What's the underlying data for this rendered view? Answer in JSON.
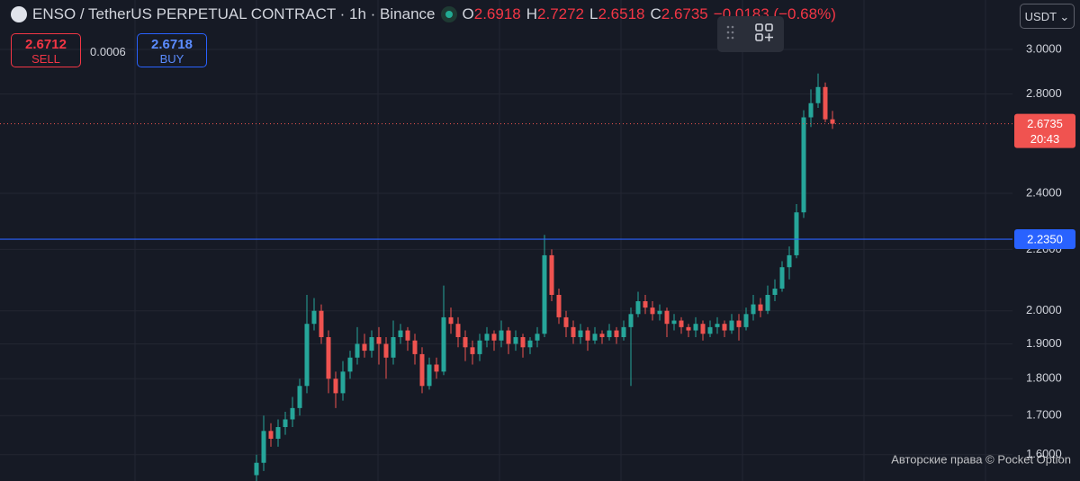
{
  "header": {
    "symbol": "ENSO / TetherUS PERPETUAL CONTRACT · 1h · Binance",
    "ohlc": [
      {
        "label": "O",
        "value": "2.6918"
      },
      {
        "label": "H",
        "value": "2.7272"
      },
      {
        "label": "L",
        "value": "2.6518"
      },
      {
        "label": "C",
        "value": "2.6735"
      }
    ],
    "change": "−0.0183 (−0.68%)"
  },
  "trade": {
    "sell": {
      "price": "2.6712",
      "label": "SELL"
    },
    "spread": "0.0006",
    "buy": {
      "price": "2.6718",
      "label": "BUY"
    }
  },
  "currency": "USDT",
  "watermark": "Авторские права © Pocket Option",
  "chart_data": {
    "type": "candlestick",
    "log_scale": true,
    "grid": true,
    "up_color": "#26a69a",
    "down_color": "#ef5350",
    "open": [
      1.55,
      1.58,
      1.66,
      1.64,
      1.67,
      1.69,
      1.72,
      1.78,
      1.96,
      2.0,
      1.92,
      1.8,
      1.76,
      1.82,
      1.86,
      1.9,
      1.88,
      1.92,
      1.9,
      1.86,
      1.92,
      1.94,
      1.91,
      1.87,
      1.78,
      1.84,
      1.82,
      1.98,
      1.96,
      1.92,
      1.89,
      1.87,
      1.91,
      1.93,
      1.91,
      1.94,
      1.9,
      1.92,
      1.89,
      1.91,
      1.93,
      2.18,
      2.05,
      1.98,
      1.95,
      1.92,
      1.94,
      1.91,
      1.93,
      1.92,
      1.94,
      1.92,
      1.95,
      1.99,
      2.03,
      2.01,
      1.99,
      2.0,
      1.96,
      1.97,
      1.95,
      1.94,
      1.96,
      1.93,
      1.95,
      1.96,
      1.94,
      1.97,
      1.95,
      1.99,
      2.02,
      2.0,
      2.05,
      2.07,
      2.14,
      2.18,
      2.33,
      2.7,
      2.76,
      2.83,
      2.6918
    ],
    "high": [
      1.6,
      1.7,
      1.68,
      1.69,
      1.71,
      1.75,
      1.8,
      2.05,
      2.04,
      2.02,
      1.94,
      1.82,
      1.85,
      1.88,
      1.95,
      1.93,
      1.94,
      1.95,
      1.92,
      1.97,
      1.96,
      1.95,
      1.93,
      1.89,
      1.86,
      1.86,
      2.08,
      2.01,
      1.98,
      1.94,
      1.91,
      1.93,
      1.95,
      1.94,
      1.97,
      1.95,
      1.94,
      1.93,
      1.92,
      1.95,
      2.25,
      2.2,
      2.07,
      2.0,
      1.97,
      1.96,
      1.95,
      1.95,
      1.94,
      1.96,
      1.95,
      1.97,
      2.01,
      2.06,
      2.05,
      2.03,
      2.02,
      2.01,
      1.99,
      1.98,
      1.96,
      1.98,
      1.97,
      1.97,
      1.98,
      1.97,
      1.99,
      1.99,
      2.01,
      2.05,
      2.04,
      2.08,
      2.1,
      2.16,
      2.21,
      2.36,
      2.73,
      2.82,
      2.89,
      2.85,
      2.7272
    ],
    "low": [
      1.53,
      1.56,
      1.62,
      1.62,
      1.65,
      1.67,
      1.7,
      1.76,
      1.94,
      1.9,
      1.76,
      1.72,
      1.74,
      1.8,
      1.84,
      1.86,
      1.86,
      1.84,
      1.8,
      1.84,
      1.9,
      1.88,
      1.84,
      1.76,
      1.77,
      1.8,
      1.81,
      1.93,
      1.89,
      1.85,
      1.84,
      1.85,
      1.89,
      1.88,
      1.89,
      1.87,
      1.88,
      1.86,
      1.87,
      1.89,
      1.92,
      2.03,
      1.96,
      1.92,
      1.9,
      1.9,
      1.88,
      1.9,
      1.9,
      1.91,
      1.9,
      1.91,
      1.78,
      1.98,
      1.99,
      1.97,
      1.97,
      1.92,
      1.94,
      1.93,
      1.92,
      1.92,
      1.91,
      1.92,
      1.93,
      1.92,
      1.93,
      1.91,
      1.94,
      1.97,
      1.98,
      1.99,
      2.03,
      2.06,
      2.1,
      2.17,
      2.31,
      2.66,
      2.74,
      2.68,
      2.6518
    ],
    "close": [
      1.58,
      1.66,
      1.64,
      1.67,
      1.69,
      1.72,
      1.78,
      1.96,
      2.0,
      1.92,
      1.8,
      1.76,
      1.82,
      1.86,
      1.9,
      1.88,
      1.92,
      1.9,
      1.86,
      1.92,
      1.94,
      1.91,
      1.87,
      1.78,
      1.84,
      1.82,
      1.98,
      1.96,
      1.92,
      1.89,
      1.87,
      1.91,
      1.93,
      1.91,
      1.94,
      1.9,
      1.92,
      1.89,
      1.91,
      1.93,
      2.18,
      2.05,
      1.98,
      1.95,
      1.92,
      1.94,
      1.91,
      1.93,
      1.92,
      1.94,
      1.92,
      1.95,
      1.99,
      2.03,
      2.01,
      1.99,
      2.0,
      1.96,
      1.97,
      1.95,
      1.94,
      1.96,
      1.93,
      1.95,
      1.96,
      1.94,
      1.97,
      1.95,
      1.99,
      2.02,
      2.0,
      2.05,
      2.07,
      2.14,
      2.18,
      2.33,
      2.7,
      2.76,
      2.83,
      2.6918,
      2.6735
    ],
    "ylim": [
      1.536,
      3.239
    ],
    "yticks": [
      {
        "value": 1.6,
        "label": "1.6000"
      },
      {
        "value": 1.7,
        "label": "1.7000"
      },
      {
        "value": 1.8,
        "label": "1.8000"
      },
      {
        "value": 1.9,
        "label": "1.9000"
      },
      {
        "value": 2,
        "label": "2.0000"
      },
      {
        "value": 2.2,
        "label": "2.2000"
      },
      {
        "value": 2.4,
        "label": "2.4000"
      },
      {
        "value": 2.8,
        "label": "2.8000"
      },
      {
        "value": 3,
        "label": "3.0000"
      }
    ],
    "last_price": 2.6735,
    "countdown": "20:43",
    "price_line": {
      "value": 2.235,
      "label": "2.2350"
    }
  }
}
